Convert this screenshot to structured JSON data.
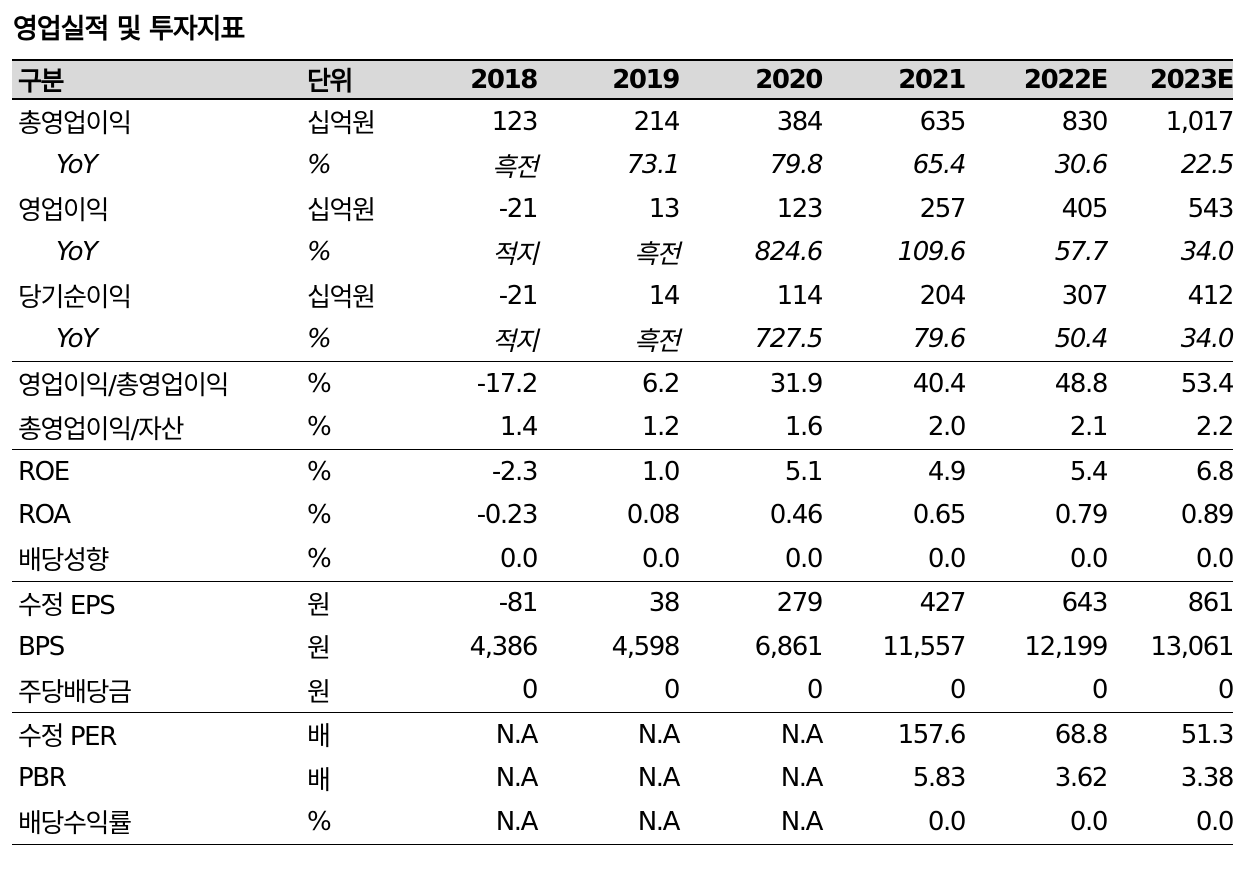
{
  "title": "영업실적 및 투자지표",
  "header": [
    "구분",
    "단위",
    "2018",
    "2019",
    "2020",
    "2021",
    "2022E",
    "2023E"
  ],
  "rows": [
    {
      "label": "총영업이익",
      "unit": "십억원",
      "values": [
        "123",
        "214",
        "384",
        "635",
        "830",
        "1,017"
      ],
      "sub": false,
      "sep": false
    },
    {
      "label": "YoY",
      "unit": "%",
      "values": [
        "흑전",
        "73.1",
        "79.8",
        "65.4",
        "30.6",
        "22.5"
      ],
      "sub": true,
      "sep": false
    },
    {
      "label": "영업이익",
      "unit": "십억원",
      "values": [
        "-21",
        "13",
        "123",
        "257",
        "405",
        "543"
      ],
      "sub": false,
      "sep": false
    },
    {
      "label": "YoY",
      "unit": "%",
      "values": [
        "적지",
        "흑전",
        "824.6",
        "109.6",
        "57.7",
        "34.0"
      ],
      "sub": true,
      "sep": false
    },
    {
      "label": "당기순이익",
      "unit": "십억원",
      "values": [
        "-21",
        "14",
        "114",
        "204",
        "307",
        "412"
      ],
      "sub": false,
      "sep": false
    },
    {
      "label": "YoY",
      "unit": "%",
      "values": [
        "적지",
        "흑전",
        "727.5",
        "79.6",
        "50.4",
        "34.0"
      ],
      "sub": true,
      "sep": false
    },
    {
      "label": "영업이익/총영업이익",
      "unit": "%",
      "values": [
        "-17.2",
        "6.2",
        "31.9",
        "40.4",
        "48.8",
        "53.4"
      ],
      "sub": false,
      "sep": true
    },
    {
      "label": "총영업이익/자산",
      "unit": "%",
      "values": [
        "1.4",
        "1.2",
        "1.6",
        "2.0",
        "2.1",
        "2.2"
      ],
      "sub": false,
      "sep": false
    },
    {
      "label": "ROE",
      "unit": "%",
      "values": [
        "-2.3",
        "1.0",
        "5.1",
        "4.9",
        "5.4",
        "6.8"
      ],
      "sub": false,
      "sep": true
    },
    {
      "label": "ROA",
      "unit": "%",
      "values": [
        "-0.23",
        "0.08",
        "0.46",
        "0.65",
        "0.79",
        "0.89"
      ],
      "sub": false,
      "sep": false
    },
    {
      "label": "배당성향",
      "unit": "%",
      "values": [
        "0.0",
        "0.0",
        "0.0",
        "0.0",
        "0.0",
        "0.0"
      ],
      "sub": false,
      "sep": false
    },
    {
      "label": "수정 EPS",
      "unit": "원",
      "values": [
        "-81",
        "38",
        "279",
        "427",
        "643",
        "861"
      ],
      "sub": false,
      "sep": true
    },
    {
      "label": "BPS",
      "unit": "원",
      "values": [
        "4,386",
        "4,598",
        "6,861",
        "11,557",
        "12,199",
        "13,061"
      ],
      "sub": false,
      "sep": false
    },
    {
      "label": "주당배당금",
      "unit": "원",
      "values": [
        "0",
        "0",
        "0",
        "0",
        "0",
        "0"
      ],
      "sub": false,
      "sep": false
    },
    {
      "label": "수정 PER",
      "unit": "배",
      "values": [
        "N.A",
        "N.A",
        "N.A",
        "157.6",
        "68.8",
        "51.3"
      ],
      "sub": false,
      "sep": true
    },
    {
      "label": "PBR",
      "unit": "배",
      "values": [
        "N.A",
        "N.A",
        "N.A",
        "5.83",
        "3.62",
        "3.38"
      ],
      "sub": false,
      "sep": false
    },
    {
      "label": "배당수익률",
      "unit": "%",
      "values": [
        "N.A",
        "N.A",
        "N.A",
        "0.0",
        "0.0",
        "0.0"
      ],
      "sub": false,
      "sep": false
    }
  ]
}
